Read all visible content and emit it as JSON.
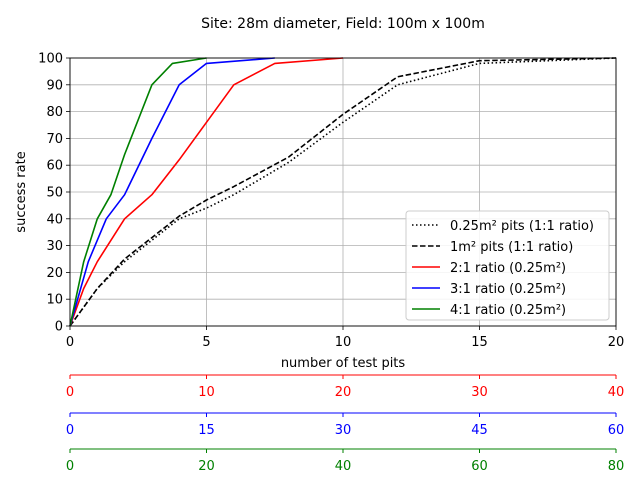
{
  "chart_data": {
    "type": "line",
    "title": "Site: 28m diameter, Field: 100m x 100m",
    "xlabel": "number of test pits",
    "ylabel": "success rate",
    "xlim": [
      0,
      20
    ],
    "ylim": [
      0,
      100
    ],
    "xticks": [
      0,
      5,
      10,
      15,
      20
    ],
    "yticks": [
      0,
      10,
      20,
      30,
      40,
      50,
      60,
      70,
      80,
      90,
      100
    ],
    "grid": "x major, y major",
    "legend_position": "lower-right",
    "series": [
      {
        "name": "0.25m² pits (1:1 ratio)",
        "color": "#000000",
        "dash": "dotted",
        "x": [
          0,
          1,
          2,
          3,
          4,
          5,
          6,
          8,
          10,
          12,
          15,
          20
        ],
        "y": [
          0,
          14,
          24,
          32,
          40,
          44,
          49,
          61,
          76,
          90,
          98,
          100
        ]
      },
      {
        "name": "1m² pits (1:1 ratio)",
        "color": "#000000",
        "dash": "dashed",
        "x": [
          0,
          1,
          2,
          3,
          4,
          5,
          6,
          8,
          10,
          12,
          15,
          20
        ],
        "y": [
          0,
          14,
          25,
          33,
          41,
          47,
          52,
          63,
          79,
          93,
          99,
          100
        ]
      },
      {
        "name": "2:1 ratio (0.25m²)",
        "color": "#ff0000",
        "dash": "solid",
        "x": [
          0,
          0.5,
          1,
          2,
          3,
          4,
          5,
          6,
          7.5,
          10
        ],
        "y": [
          0,
          14,
          24,
          40,
          49,
          62,
          76,
          90,
          98,
          100
        ]
      },
      {
        "name": "3:1 ratio (0.25m²)",
        "color": "#0000ff",
        "dash": "solid",
        "x": [
          0,
          0.67,
          1.33,
          2,
          3,
          4,
          5,
          7.5
        ],
        "y": [
          0,
          24,
          40,
          49,
          70,
          90,
          98,
          100
        ]
      },
      {
        "name": "4:1 ratio (0.25m²)",
        "color": "#008000",
        "dash": "solid",
        "x": [
          0,
          0.5,
          1,
          1.5,
          2,
          3,
          3.75,
          5
        ],
        "y": [
          0,
          24,
          40,
          49,
          64,
          90,
          98,
          100
        ]
      }
    ],
    "secondary_axes": [
      {
        "color": "#ff0000",
        "range": [
          0,
          40
        ],
        "ticks": [
          0,
          10,
          20,
          30,
          40
        ]
      },
      {
        "color": "#0000ff",
        "range": [
          0,
          60
        ],
        "ticks": [
          0,
          15,
          30,
          45,
          60
        ]
      },
      {
        "color": "#008000",
        "range": [
          0,
          80
        ],
        "ticks": [
          0,
          20,
          40,
          60,
          80
        ]
      }
    ]
  }
}
